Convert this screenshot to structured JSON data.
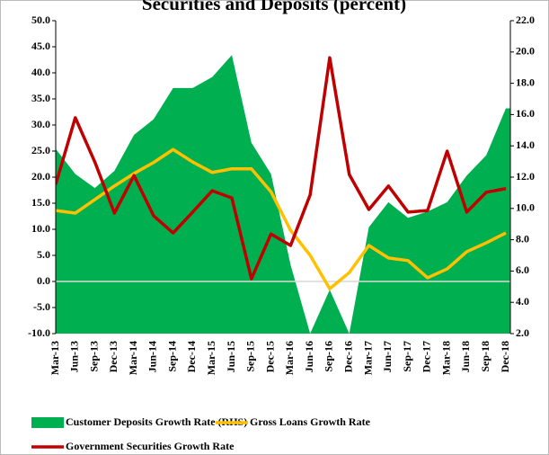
{
  "chart_data": {
    "type": "area-line",
    "title": "Securities and Deposits (percent)",
    "categories": [
      "Mar-13",
      "Jun-13",
      "Sep-13",
      "Dec-13",
      "Mar-14",
      "Jun-14",
      "Sep-14",
      "Dec-14",
      "Mar-15",
      "Jun-15",
      "Sep-15",
      "Dec-15",
      "Mar-16",
      "Jun-16",
      "Sep-16",
      "Dec-16",
      "Mar-17",
      "Jun-17",
      "Sep-17",
      "Dec-17",
      "Mar-18",
      "Jun-18",
      "Sep-18",
      "Dec-18"
    ],
    "series": [
      {
        "name": "Customer Deposits Growth Rate (RHS)",
        "color": "#00b050",
        "axis": "y2",
        "kind": "area",
        "values": [
          13.8,
          12.2,
          11.3,
          12.4,
          14.7,
          15.7,
          17.7,
          17.7,
          18.4,
          19.8,
          14.2,
          12.2,
          6.4,
          2.0,
          4.8,
          2.0,
          8.8,
          10.4,
          9.4,
          9.8,
          10.4,
          12.1,
          13.4,
          16.4
        ]
      },
      {
        "name": "Gross Loans Growth Rate",
        "color": "#ffc000",
        "kind": "line",
        "values": [
          13.6,
          13.1,
          15.7,
          18.3,
          20.7,
          22.8,
          25.3,
          22.9,
          20.9,
          21.6,
          21.6,
          17.2,
          9.8,
          5.0,
          -1.4,
          1.7,
          6.9,
          4.5,
          4.0,
          0.7,
          2.4,
          5.7,
          7.4,
          9.3
        ]
      },
      {
        "name": "Government Securities Growth Rate",
        "color": "#c00000",
        "kind": "line",
        "values": [
          18.6,
          31.4,
          22.9,
          13.1,
          20.3,
          12.6,
          9.3,
          13.3,
          17.4,
          16.0,
          0.5,
          9.1,
          6.9,
          16.6,
          42.9,
          20.5,
          13.8,
          18.3,
          13.3,
          13.6,
          25.0,
          13.3,
          17.1,
          17.8
        ]
      }
    ],
    "ylim": [
      -10,
      50
    ],
    "yticks": [
      {
        "value": -10,
        "label": "-10.0"
      },
      {
        "value": -5,
        "label": "-5.0"
      },
      {
        "value": 0,
        "label": "0.0"
      },
      {
        "value": 5,
        "label": "5.0"
      },
      {
        "value": 10,
        "label": "10.0"
      },
      {
        "value": 15,
        "label": "15.0"
      },
      {
        "value": 20,
        "label": "20.0"
      },
      {
        "value": 25,
        "label": "25.0"
      },
      {
        "value": 30,
        "label": "30.0"
      },
      {
        "value": 35,
        "label": "35.0"
      },
      {
        "value": 40,
        "label": "40.0"
      },
      {
        "value": 45,
        "label": "45.0"
      },
      {
        "value": 50,
        "label": "50.0"
      }
    ],
    "y2lim": [
      2,
      22
    ],
    "y2ticks": [
      {
        "value": 2,
        "label": "2.0"
      },
      {
        "value": 4,
        "label": "4.0"
      },
      {
        "value": 6,
        "label": "6.0"
      },
      {
        "value": 8,
        "label": "8.0"
      },
      {
        "value": 10,
        "label": "10.0"
      },
      {
        "value": 12,
        "label": "12.0"
      },
      {
        "value": 14,
        "label": "14.0"
      },
      {
        "value": 16,
        "label": "16.0"
      },
      {
        "value": 18,
        "label": "18.0"
      },
      {
        "value": 20,
        "label": "20.0"
      },
      {
        "value": 22,
        "label": "22.0"
      }
    ],
    "title_color": "#1f3c88"
  }
}
